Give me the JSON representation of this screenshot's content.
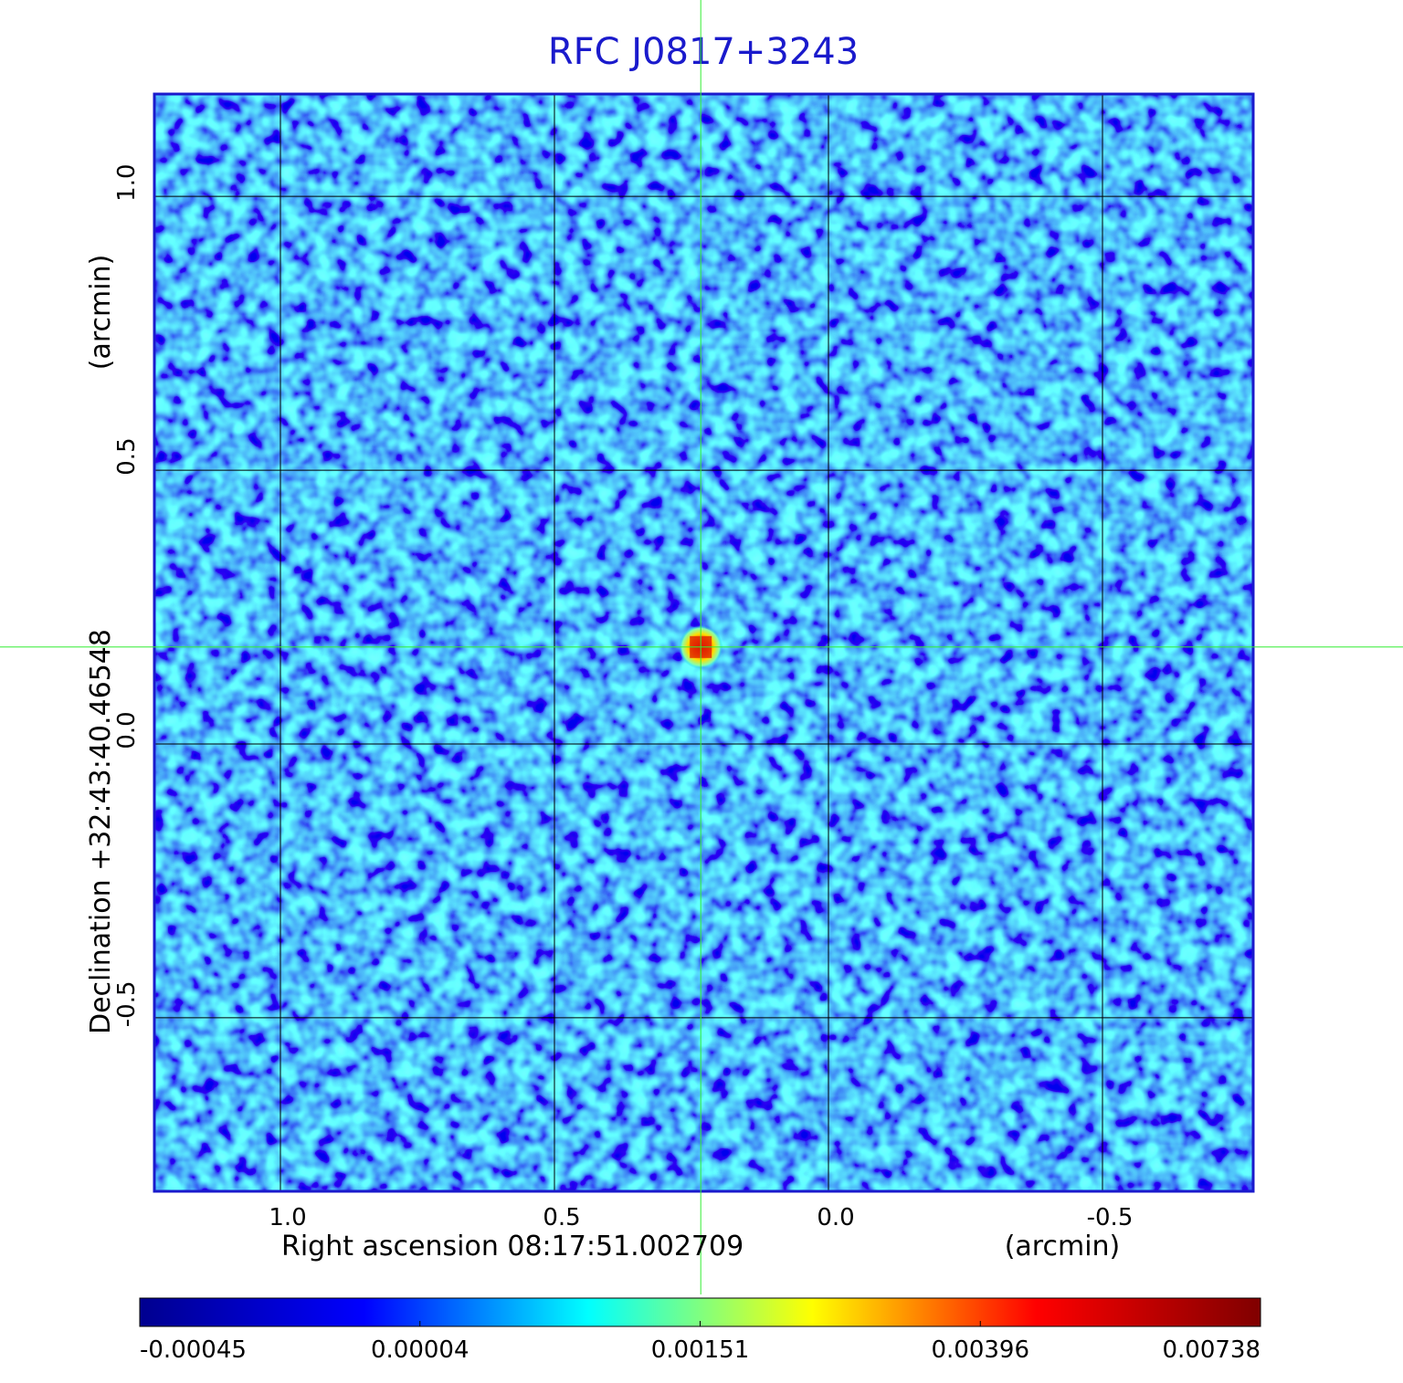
{
  "chart_data": {
    "type": "image",
    "title": "RFC J0817+3243",
    "x_label": "Right ascension  08:17:51.002709",
    "x_unit": "(arcmin)",
    "y_label": "Declination  +32:43:40.46548",
    "y_unit": "(arcmin)",
    "xlim": [
      1.23,
      -0.775
    ],
    "ylim": [
      -0.817,
      1.187
    ],
    "xticks": [
      {
        "value": 1,
        "label": "1.0"
      },
      0.5,
      {
        "value": 0,
        "label": "0.0"
      },
      -0.5
    ],
    "yticks": [
      -0.5,
      {
        "value": 0,
        "label": "0.0"
      },
      0.5,
      {
        "value": 1,
        "label": "1.0"
      }
    ],
    "grid": true,
    "source": {
      "x": 0.233,
      "y": 0.177
    },
    "crosshair_color": "#33ee33",
    "frame_color": "#1a1acc",
    "colorbar": {
      "ticks": [
        -0.00045,
        4e-05,
        0.00151,
        0.00396,
        0.00738
      ],
      "colors": [
        "#00008f",
        "#0000ff",
        "#00ffff",
        "#ffff00",
        "#ff0000",
        "#800000"
      ]
    }
  }
}
